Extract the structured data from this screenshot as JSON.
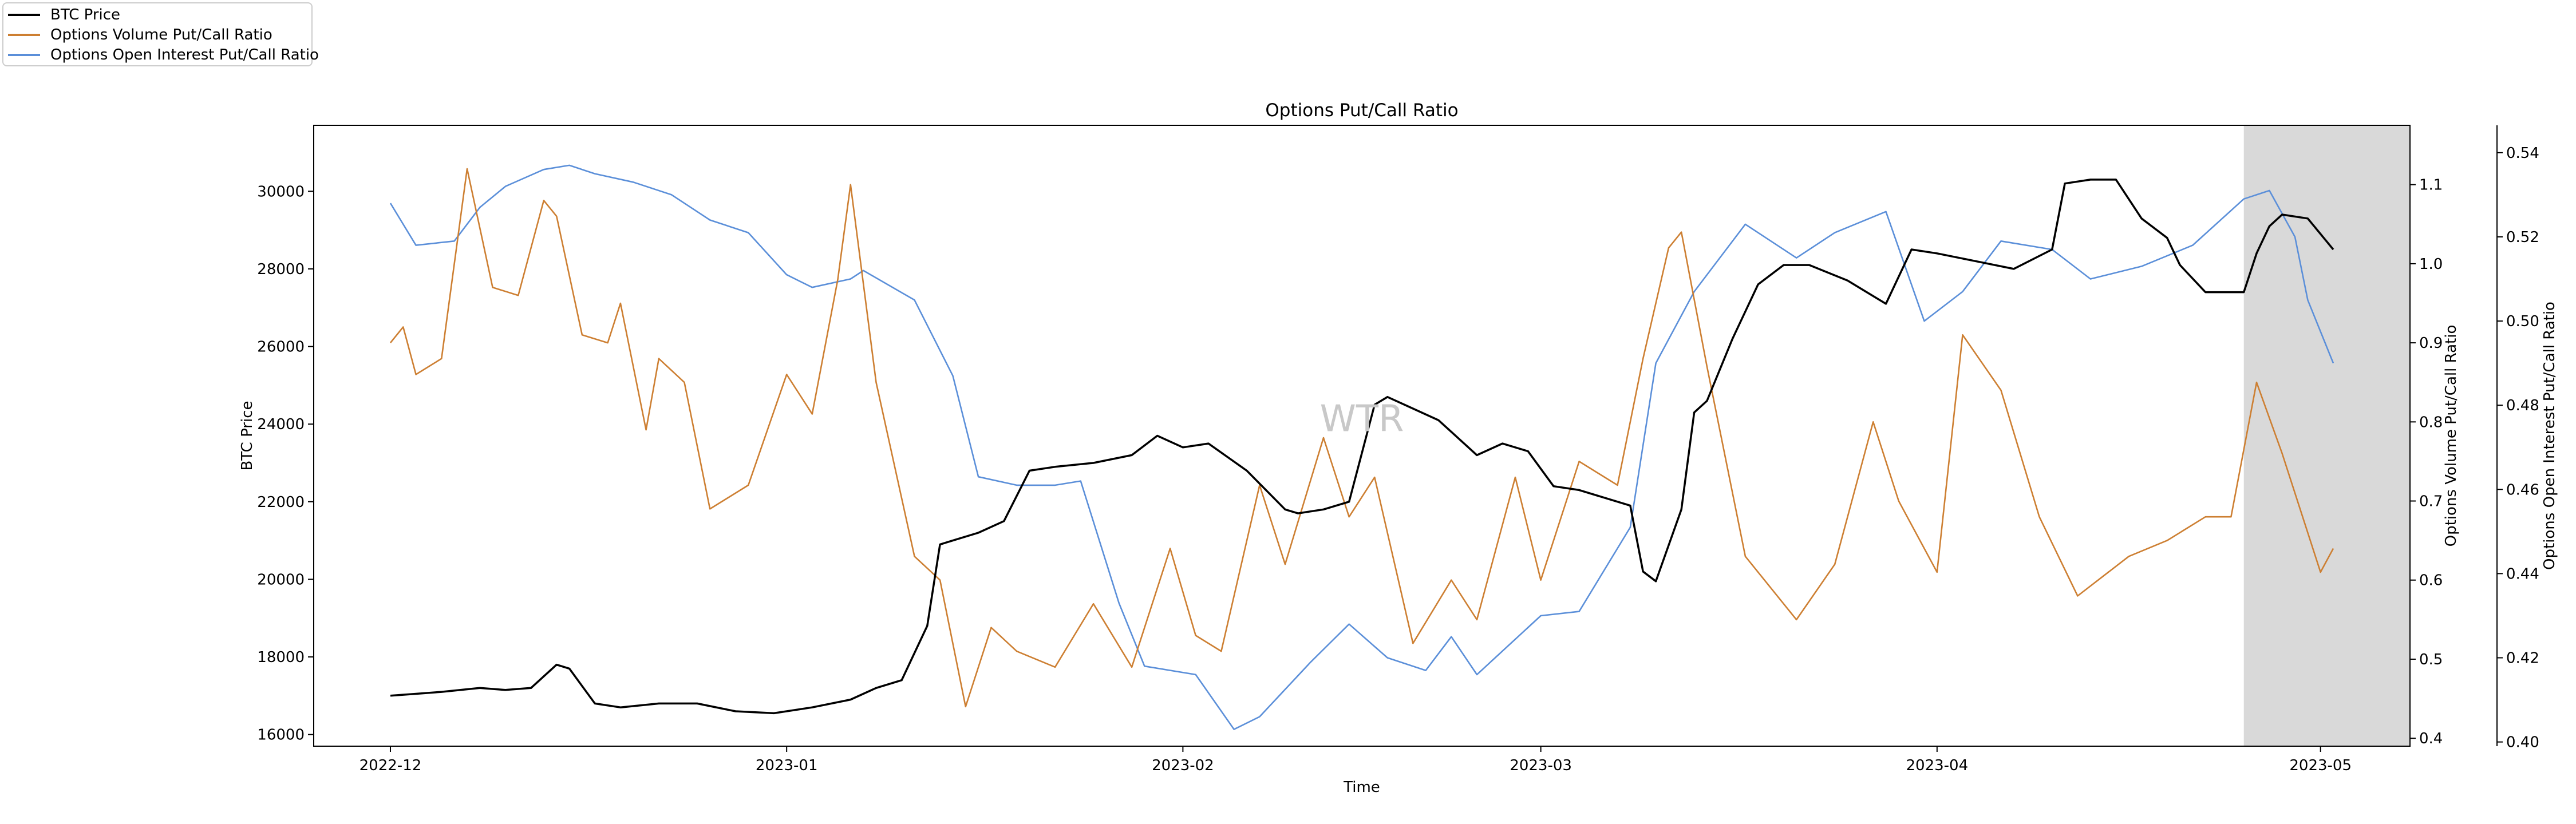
{
  "chart_data": {
    "type": "line",
    "title": "Options Put/Call Ratio",
    "xlabel": "Time",
    "watermark": "WTR",
    "x_ticks": [
      "2022-12",
      "2023-01",
      "2023-02",
      "2023-03",
      "2023-04",
      "2023-05"
    ],
    "x_range": [
      "2022-11-25",
      "2023-05-08"
    ],
    "highlight_region": {
      "start": "2023-04-25",
      "end": "2023-05-08",
      "color": "#d9d9d9"
    },
    "axes": {
      "left": {
        "label": "BTC Price",
        "ylim": [
          15700,
          31700
        ],
        "ticks": [
          16000,
          18000,
          20000,
          22000,
          24000,
          26000,
          28000,
          30000
        ]
      },
      "right1": {
        "label": "Options Volume Put/Call Ratio",
        "ylim": [
          0.39,
          1.175
        ],
        "ticks": [
          "0.4",
          "0.5",
          "0.6",
          "0.7",
          "0.8",
          "0.9",
          "1.0",
          "1.1"
        ]
      },
      "right2": {
        "label": "Options Open Interest Put/Call Ratio",
        "ylim": [
          0.399,
          0.5465
        ],
        "ticks": [
          "0.40",
          "0.42",
          "0.44",
          "0.46",
          "0.48",
          "0.50",
          "0.52",
          "0.54"
        ]
      }
    },
    "legend": {
      "position": "top-left"
    },
    "series": [
      {
        "name": "BTC Price",
        "axis": "left",
        "color": "#000000",
        "x": [
          "2022-12-01",
          "2022-12-03",
          "2022-12-05",
          "2022-12-08",
          "2022-12-10",
          "2022-12-12",
          "2022-12-14",
          "2022-12-15",
          "2022-12-17",
          "2022-12-19",
          "2022-12-22",
          "2022-12-25",
          "2022-12-28",
          "2022-12-31",
          "2023-01-03",
          "2023-01-06",
          "2023-01-08",
          "2023-01-10",
          "2023-01-12",
          "2023-01-13",
          "2023-01-14",
          "2023-01-16",
          "2023-01-18",
          "2023-01-20",
          "2023-01-22",
          "2023-01-25",
          "2023-01-28",
          "2023-01-30",
          "2023-02-01",
          "2023-02-03",
          "2023-02-06",
          "2023-02-09",
          "2023-02-10",
          "2023-02-12",
          "2023-02-14",
          "2023-02-16",
          "2023-02-17",
          "2023-02-19",
          "2023-02-21",
          "2023-02-24",
          "2023-02-26",
          "2023-02-28",
          "2023-03-02",
          "2023-03-04",
          "2023-03-08",
          "2023-03-09",
          "2023-03-10",
          "2023-03-12",
          "2023-03-13",
          "2023-03-14",
          "2023-03-16",
          "2023-03-18",
          "2023-03-20",
          "2023-03-22",
          "2023-03-25",
          "2023-03-28",
          "2023-03-30",
          "2023-04-01",
          "2023-04-04",
          "2023-04-07",
          "2023-04-10",
          "2023-04-11",
          "2023-04-13",
          "2023-04-15",
          "2023-04-17",
          "2023-04-19",
          "2023-04-20",
          "2023-04-22",
          "2023-04-25",
          "2023-04-26",
          "2023-04-27",
          "2023-04-28",
          "2023-04-30",
          "2023-05-01",
          "2023-05-02"
        ],
        "values": [
          17000,
          17050,
          17100,
          17200,
          17150,
          17200,
          17800,
          17700,
          16800,
          16700,
          16800,
          16800,
          16600,
          16550,
          16700,
          16900,
          17200,
          17400,
          18800,
          20900,
          21000,
          21200,
          21500,
          22800,
          22900,
          23000,
          23200,
          23700,
          23400,
          23500,
          22800,
          21800,
          21700,
          21800,
          22000,
          24500,
          24700,
          24400,
          24100,
          23200,
          23500,
          23300,
          22400,
          22300,
          21900,
          20200,
          19950,
          21800,
          24300,
          24600,
          26200,
          27600,
          28100,
          28100,
          27700,
          27100,
          28500,
          28400,
          28200,
          28000,
          28500,
          30200,
          30300,
          30300,
          29300,
          28800,
          28100,
          27400,
          27400,
          28400,
          29100,
          29400,
          29300,
          28900,
          28500
        ]
      },
      {
        "name": "Options Volume Put/Call Ratio",
        "axis": "right1",
        "color": "#cd7f32",
        "x": [
          "2022-12-01",
          "2022-12-02",
          "2022-12-03",
          "2022-12-05",
          "2022-12-07",
          "2022-12-09",
          "2022-12-11",
          "2022-12-13",
          "2022-12-14",
          "2022-12-16",
          "2022-12-18",
          "2022-12-19",
          "2022-12-21",
          "2022-12-22",
          "2022-12-24",
          "2022-12-26",
          "2022-12-29",
          "2023-01-01",
          "2023-01-03",
          "2023-01-05",
          "2023-01-06",
          "2023-01-08",
          "2023-01-11",
          "2023-01-13",
          "2023-01-15",
          "2023-01-17",
          "2023-01-19",
          "2023-01-22",
          "2023-01-25",
          "2023-01-28",
          "2023-01-31",
          "2023-02-02",
          "2023-02-04",
          "2023-02-07",
          "2023-02-09",
          "2023-02-12",
          "2023-02-14",
          "2023-02-16",
          "2023-02-19",
          "2023-02-22",
          "2023-02-24",
          "2023-02-27",
          "2023-03-01",
          "2023-03-04",
          "2023-03-07",
          "2023-03-09",
          "2023-03-11",
          "2023-03-12",
          "2023-03-14",
          "2023-03-17",
          "2023-03-21",
          "2023-03-24",
          "2023-03-27",
          "2023-03-29",
          "2023-04-01",
          "2023-04-03",
          "2023-04-06",
          "2023-04-09",
          "2023-04-12",
          "2023-04-16",
          "2023-04-19",
          "2023-04-22",
          "2023-04-24",
          "2023-04-26",
          "2023-04-28",
          "2023-05-01",
          "2023-05-02"
        ],
        "values": [
          0.9,
          0.92,
          0.86,
          0.88,
          1.12,
          0.97,
          0.96,
          1.08,
          1.06,
          0.91,
          0.9,
          0.95,
          0.79,
          0.88,
          0.85,
          0.69,
          0.72,
          0.86,
          0.81,
          0.98,
          1.1,
          0.85,
          0.63,
          0.6,
          0.44,
          0.54,
          0.51,
          0.49,
          0.57,
          0.49,
          0.64,
          0.53,
          0.51,
          0.72,
          0.62,
          0.78,
          0.68,
          0.73,
          0.52,
          0.6,
          0.55,
          0.73,
          0.6,
          0.75,
          0.72,
          0.88,
          1.02,
          1.04,
          0.87,
          0.63,
          0.55,
          0.62,
          0.8,
          0.7,
          0.61,
          0.91,
          0.84,
          0.68,
          0.58,
          0.63,
          0.65,
          0.68,
          0.68,
          0.85,
          0.76,
          0.61,
          0.64
        ]
      },
      {
        "name": "Options Open Interest Put/Call Ratio",
        "axis": "right2",
        "color": "#5b8fd9",
        "x": [
          "2022-12-01",
          "2022-12-03",
          "2022-12-06",
          "2022-12-08",
          "2022-12-10",
          "2022-12-13",
          "2022-12-15",
          "2022-12-17",
          "2022-12-20",
          "2022-12-23",
          "2022-12-26",
          "2022-12-29",
          "2023-01-01",
          "2023-01-03",
          "2023-01-06",
          "2023-01-07",
          "2023-01-11",
          "2023-01-14",
          "2023-01-16",
          "2023-01-19",
          "2023-01-22",
          "2023-01-24",
          "2023-01-27",
          "2023-01-29",
          "2023-02-02",
          "2023-02-05",
          "2023-02-07",
          "2023-02-11",
          "2023-02-14",
          "2023-02-17",
          "2023-02-20",
          "2023-02-22",
          "2023-02-24",
          "2023-03-01",
          "2023-03-04",
          "2023-03-08",
          "2023-03-10",
          "2023-03-13",
          "2023-03-17",
          "2023-03-21",
          "2023-03-24",
          "2023-03-28",
          "2023-03-31",
          "2023-04-03",
          "2023-04-06",
          "2023-04-10",
          "2023-04-13",
          "2023-04-17",
          "2023-04-21",
          "2023-04-25",
          "2023-04-27",
          "2023-04-29",
          "2023-04-30",
          "2023-05-02"
        ],
        "values": [
          0.528,
          0.518,
          0.519,
          0.527,
          0.532,
          0.536,
          0.537,
          0.535,
          0.533,
          0.53,
          0.524,
          0.521,
          0.511,
          0.508,
          0.51,
          0.512,
          0.505,
          0.487,
          0.463,
          0.461,
          0.461,
          0.462,
          0.433,
          0.418,
          0.416,
          0.403,
          0.406,
          0.419,
          0.428,
          0.42,
          0.417,
          0.425,
          0.416,
          0.43,
          0.431,
          0.451,
          0.49,
          0.507,
          0.523,
          0.515,
          0.521,
          0.526,
          0.5,
          0.507,
          0.519,
          0.517,
          0.51,
          0.513,
          0.518,
          0.529,
          0.531,
          0.52,
          0.505,
          0.49
        ]
      }
    ]
  }
}
